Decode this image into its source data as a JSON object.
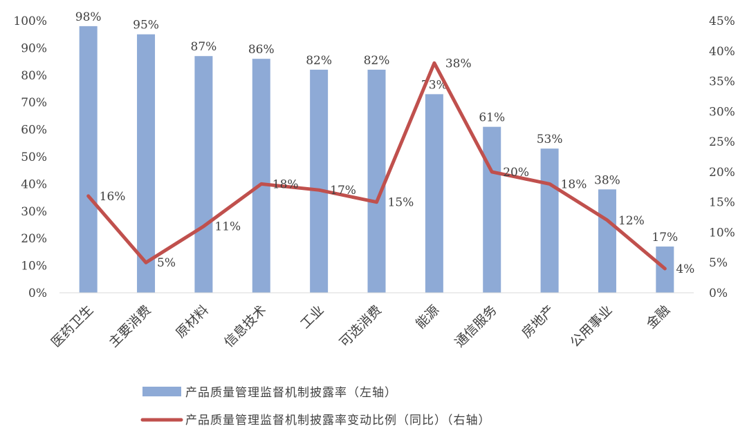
{
  "chart_data": {
    "type": "bar+line",
    "categories": [
      "医药卫生",
      "主要消费",
      "原材料",
      "信息技术",
      "工业",
      "可选消费",
      "能源",
      "通信服务",
      "房地产",
      "公用事业",
      "金融"
    ],
    "series": [
      {
        "name": "产品质量管理监督机制披露率（左轴）",
        "type": "bar",
        "axis": "left",
        "color": "#8eaad6",
        "values": [
          98,
          95,
          87,
          86,
          82,
          82,
          73,
          61,
          53,
          38,
          17
        ],
        "labels": [
          "98%",
          "95%",
          "87%",
          "86%",
          "82%",
          "82%",
          "73%",
          "61%",
          "53%",
          "38%",
          "17%"
        ]
      },
      {
        "name": "产品质量管理监督机制披露率变动比例（同比）（右轴）",
        "type": "line",
        "axis": "right",
        "color": "#c0504d",
        "values": [
          16,
          5,
          11,
          18,
          17,
          15,
          38,
          20,
          18,
          12,
          4
        ],
        "labels": [
          "16%",
          "5%",
          "11%",
          "18%",
          "17%",
          "15%",
          "38%",
          "20%",
          "18%",
          "12%",
          "4%"
        ]
      }
    ],
    "left_axis": {
      "min": 0,
      "max": 100,
      "step": 10,
      "ticks": [
        "0%",
        "10%",
        "20%",
        "30%",
        "40%",
        "50%",
        "60%",
        "70%",
        "80%",
        "90%",
        "100%"
      ]
    },
    "right_axis": {
      "min": 0,
      "max": 45,
      "step": 5,
      "ticks": [
        "0%",
        "5%",
        "10%",
        "15%",
        "20%",
        "25%",
        "30%",
        "35%",
        "40%",
        "45%"
      ]
    },
    "title": "",
    "xlabel": "",
    "ylabel": "",
    "grid": false,
    "legend_position": "bottom"
  }
}
